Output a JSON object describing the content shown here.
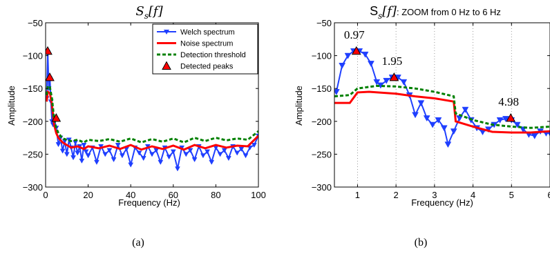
{
  "panel_labels": [
    "(a)",
    "(b)"
  ],
  "colors": {
    "welch": "#1f3fff",
    "noise": "#ff0000",
    "threshold": "#008000",
    "peak_fill": "#ff0000",
    "peak_edge": "#000000",
    "grid": "#808080"
  },
  "chart_data": [
    {
      "type": "line",
      "title": "S_s[f]",
      "title_main": "S",
      "title_sub": "s",
      "title_arg": "[f]",
      "xlabel": "Frequency (Hz)",
      "ylabel": "Amplitude",
      "xlim": [
        0,
        100
      ],
      "ylim": [
        -300,
        -50
      ],
      "xticks": [
        0,
        20,
        40,
        60,
        80,
        100
      ],
      "xtick_labels": [
        "0",
        "20",
        "40",
        "60",
        "80",
        "100"
      ],
      "yticks": [
        -300,
        -250,
        -200,
        -150,
        -100,
        -50
      ],
      "ytick_labels": [
        "−300",
        "−250",
        "−200",
        "−150",
        "−100",
        "−50"
      ],
      "grid": false,
      "legend_position": "top-right",
      "legend": [
        "Welch spectrum",
        "Noise spectrum",
        "Detection threshold",
        "Detected peaks"
      ],
      "series": [
        {
          "name": "Welch spectrum",
          "marker": "triangle-down",
          "x": [
            0.5,
            1,
            1.5,
            2,
            2.5,
            3,
            3.5,
            4,
            5,
            6,
            7,
            8,
            9,
            10,
            11,
            12,
            13,
            14,
            15,
            16,
            17,
            18,
            19,
            20,
            22,
            24,
            26,
            28,
            30,
            32,
            34,
            36,
            38,
            40,
            42,
            44,
            46,
            48,
            50,
            52,
            54,
            56,
            58,
            60,
            62,
            64,
            66,
            68,
            70,
            72,
            74,
            76,
            78,
            80,
            82,
            84,
            86,
            88,
            90,
            92,
            94,
            96,
            98,
            100
          ],
          "y": [
            -165,
            -95,
            -150,
            -135,
            -170,
            -200,
            -205,
            -195,
            -210,
            -235,
            -225,
            -245,
            -230,
            -250,
            -228,
            -240,
            -255,
            -232,
            -248,
            -238,
            -260,
            -236,
            -246,
            -252,
            -240,
            -262,
            -238,
            -250,
            -244,
            -258,
            -236,
            -252,
            -242,
            -266,
            -240,
            -248,
            -256,
            -238,
            -250,
            -244,
            -262,
            -240,
            -254,
            -246,
            -272,
            -240,
            -250,
            -244,
            -258,
            -238,
            -252,
            -246,
            -262,
            -240,
            -250,
            -244,
            -256,
            -238,
            -248,
            -242,
            -252,
            -240,
            -236,
            -222
          ]
        },
        {
          "name": "Noise spectrum",
          "x": [
            0.5,
            1,
            2,
            3,
            4,
            5,
            6,
            8,
            10,
            12,
            15,
            18,
            20,
            25,
            30,
            35,
            40,
            45,
            50,
            55,
            60,
            65,
            70,
            75,
            80,
            85,
            90,
            95,
            100
          ],
          "y": [
            -170,
            -155,
            -157,
            -175,
            -205,
            -218,
            -225,
            -232,
            -236,
            -240,
            -238,
            -242,
            -238,
            -241,
            -237,
            -242,
            -236,
            -243,
            -238,
            -242,
            -237,
            -243,
            -236,
            -241,
            -236,
            -240,
            -237,
            -238,
            -222
          ]
        },
        {
          "name": "Detection threshold",
          "x": [
            0.5,
            1,
            2,
            3,
            4,
            5,
            6,
            8,
            10,
            12,
            15,
            18,
            20,
            25,
            30,
            35,
            40,
            45,
            50,
            55,
            60,
            65,
            70,
            75,
            80,
            85,
            90,
            95,
            100
          ],
          "y": [
            -160,
            -146,
            -148,
            -165,
            -196,
            -210,
            -218,
            -226,
            -228,
            -230,
            -228,
            -232,
            -228,
            -230,
            -227,
            -231,
            -226,
            -232,
            -227,
            -231,
            -226,
            -232,
            -225,
            -230,
            -225,
            -229,
            -226,
            -228,
            -215
          ]
        },
        {
          "name": "Detected peaks",
          "marker": "triangle-up",
          "x": [
            0.97,
            1.95,
            4.98
          ],
          "y": [
            -93,
            -133,
            -195
          ]
        }
      ]
    },
    {
      "type": "line",
      "title": "S_s[f]: ZOOM from 0 Hz to 6 Hz",
      "title_main": "S",
      "title_sub": "s",
      "title_arg": "[f]",
      "title_suffix": ": ZOOM from 0 Hz to 6 Hz",
      "xlabel": "Frequency (Hz)",
      "ylabel": "Amplitude",
      "xlim": [
        0.4,
        6
      ],
      "ylim": [
        -300,
        -50
      ],
      "xticks": [
        1,
        2,
        3,
        4,
        5,
        6
      ],
      "xtick_labels": [
        "1",
        "2",
        "3",
        "4",
        "5",
        "6"
      ],
      "yticks": [
        -300,
        -250,
        -200,
        -150,
        -100,
        -50
      ],
      "ytick_labels": [
        "−300",
        "−250",
        "−200",
        "−150",
        "−100",
        "−50"
      ],
      "grid": "vertical dotted",
      "annotations": [
        {
          "text": "0.97",
          "x": 0.97,
          "y": -93
        },
        {
          "text": "1.95",
          "x": 1.95,
          "y": -133
        },
        {
          "text": "4.98",
          "x": 4.98,
          "y": -195
        }
      ],
      "series": [
        {
          "name": "Welch spectrum",
          "marker": "triangle-down",
          "x": [
            0.45,
            0.6,
            0.75,
            0.9,
            1.05,
            1.2,
            1.35,
            1.5,
            1.6,
            1.75,
            1.9,
            2.05,
            2.2,
            2.35,
            2.5,
            2.65,
            2.8,
            2.95,
            3.1,
            3.25,
            3.35,
            3.5,
            3.65,
            3.8,
            3.95,
            4.1,
            4.25,
            4.4,
            4.55,
            4.7,
            4.85,
            5.0,
            5.15,
            5.3,
            5.45,
            5.6,
            5.75,
            5.9,
            6.0
          ],
          "y": [
            -155,
            -115,
            -100,
            -93,
            -93,
            -98,
            -112,
            -140,
            -145,
            -138,
            -133,
            -133,
            -140,
            -160,
            -190,
            -172,
            -195,
            -205,
            -198,
            -210,
            -235,
            -215,
            -195,
            -182,
            -198,
            -210,
            -216,
            -212,
            -205,
            -198,
            -196,
            -198,
            -205,
            -212,
            -220,
            -222,
            -215,
            -218,
            -218
          ]
        },
        {
          "name": "Noise spectrum",
          "x": [
            0.4,
            0.8,
            1.0,
            1.3,
            2.0,
            2.5,
            3.0,
            3.5,
            3.55,
            4.0,
            4.5,
            5.0,
            5.5,
            6.0
          ],
          "y": [
            -172,
            -172,
            -156,
            -155,
            -158,
            -162,
            -165,
            -170,
            -200,
            -208,
            -216,
            -217,
            -217,
            -215
          ]
        },
        {
          "name": "Detection threshold",
          "x": [
            0.4,
            0.8,
            1.0,
            1.5,
            2.0,
            2.5,
            3.0,
            3.5,
            3.55,
            4.0,
            4.5,
            5.0,
            5.5,
            6.0
          ],
          "y": [
            -162,
            -160,
            -150,
            -146,
            -147,
            -150,
            -155,
            -162,
            -188,
            -198,
            -205,
            -208,
            -210,
            -208
          ]
        },
        {
          "name": "Detected peaks",
          "marker": "triangle-up",
          "x": [
            0.97,
            1.95,
            4.98
          ],
          "y": [
            -93,
            -133,
            -195
          ]
        }
      ]
    }
  ]
}
